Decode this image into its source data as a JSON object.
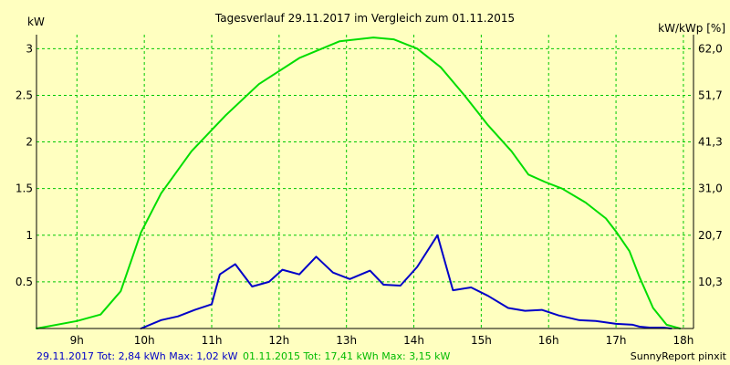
{
  "chart_data": {
    "type": "line",
    "title": "Tagesverlauf 29.11.2017 im Vergleich zum 01.11.2015",
    "ylabel_left": "kW",
    "ylabel_right": "kW/kWp [%]",
    "ylim": [
      0,
      3.15
    ],
    "xlim": [
      8.4,
      18.15
    ],
    "grid": true,
    "x_ticks": [
      {
        "value": 9,
        "label": "9h"
      },
      {
        "value": 10,
        "label": "10h"
      },
      {
        "value": 11,
        "label": "11h"
      },
      {
        "value": 12,
        "label": "12h"
      },
      {
        "value": 13,
        "label": "13h"
      },
      {
        "value": 14,
        "label": "14h"
      },
      {
        "value": 15,
        "label": "15h"
      },
      {
        "value": 16,
        "label": "16h"
      },
      {
        "value": 17,
        "label": "17h"
      },
      {
        "value": 18,
        "label": "18h"
      }
    ],
    "y_ticks_left": [
      {
        "value": 0.5,
        "label": "0.5"
      },
      {
        "value": 1,
        "label": "1"
      },
      {
        "value": 1.5,
        "label": "1.5"
      },
      {
        "value": 2,
        "label": "2"
      },
      {
        "value": 2.5,
        "label": "2.5"
      },
      {
        "value": 3,
        "label": "3"
      }
    ],
    "y_ticks_right": [
      {
        "value": 0.5,
        "label": "10,3"
      },
      {
        "value": 1,
        "label": "20,7"
      },
      {
        "value": 1.5,
        "label": "31,0"
      },
      {
        "value": 2,
        "label": "41,3"
      },
      {
        "value": 2.5,
        "label": "51,7"
      },
      {
        "value": 3,
        "label": "62,0"
      }
    ],
    "series": [
      {
        "name": "29.11.2017 Tot: 2,84 kWh Max: 1,02 kW",
        "color": "#0000c8",
        "points": [
          [
            9.95,
            0.0
          ],
          [
            10.25,
            0.09
          ],
          [
            10.5,
            0.13
          ],
          [
            10.75,
            0.2
          ],
          [
            11.0,
            0.26
          ],
          [
            11.12,
            0.58
          ],
          [
            11.35,
            0.69
          ],
          [
            11.6,
            0.45
          ],
          [
            11.85,
            0.5
          ],
          [
            12.05,
            0.63
          ],
          [
            12.3,
            0.58
          ],
          [
            12.55,
            0.77
          ],
          [
            12.8,
            0.6
          ],
          [
            13.05,
            0.53
          ],
          [
            13.35,
            0.62
          ],
          [
            13.55,
            0.47
          ],
          [
            13.8,
            0.46
          ],
          [
            14.05,
            0.66
          ],
          [
            14.35,
            1.0
          ],
          [
            14.58,
            0.41
          ],
          [
            14.85,
            0.44
          ],
          [
            15.1,
            0.35
          ],
          [
            15.4,
            0.22
          ],
          [
            15.65,
            0.19
          ],
          [
            15.9,
            0.2
          ],
          [
            16.15,
            0.14
          ],
          [
            16.45,
            0.09
          ],
          [
            16.7,
            0.08
          ],
          [
            17.0,
            0.05
          ],
          [
            17.25,
            0.04
          ],
          [
            17.35,
            0.02
          ],
          [
            17.5,
            0.01
          ],
          [
            17.7,
            0.01
          ],
          [
            17.82,
            0.0
          ]
        ]
      },
      {
        "name": "01.11.2015 Tot: 17,41 kWh Max: 3,15 kW",
        "color": "#00dd00",
        "points": [
          [
            8.4,
            0.0
          ],
          [
            9.0,
            0.08
          ],
          [
            9.35,
            0.15
          ],
          [
            9.65,
            0.4
          ],
          [
            9.95,
            1.03
          ],
          [
            10.25,
            1.45
          ],
          [
            10.7,
            1.9
          ],
          [
            11.2,
            2.28
          ],
          [
            11.7,
            2.62
          ],
          [
            12.3,
            2.9
          ],
          [
            12.9,
            3.08
          ],
          [
            13.4,
            3.12
          ],
          [
            13.7,
            3.1
          ],
          [
            14.05,
            3.0
          ],
          [
            14.4,
            2.8
          ],
          [
            14.75,
            2.5
          ],
          [
            15.1,
            2.18
          ],
          [
            15.45,
            1.9
          ],
          [
            15.7,
            1.65
          ],
          [
            15.95,
            1.57
          ],
          [
            16.2,
            1.5
          ],
          [
            16.55,
            1.35
          ],
          [
            16.85,
            1.18
          ],
          [
            17.0,
            1.04
          ],
          [
            17.2,
            0.83
          ],
          [
            17.35,
            0.55
          ],
          [
            17.55,
            0.22
          ],
          [
            17.75,
            0.04
          ],
          [
            17.95,
            0.0
          ]
        ]
      }
    ],
    "credit": "SunnyReport pinxit"
  }
}
